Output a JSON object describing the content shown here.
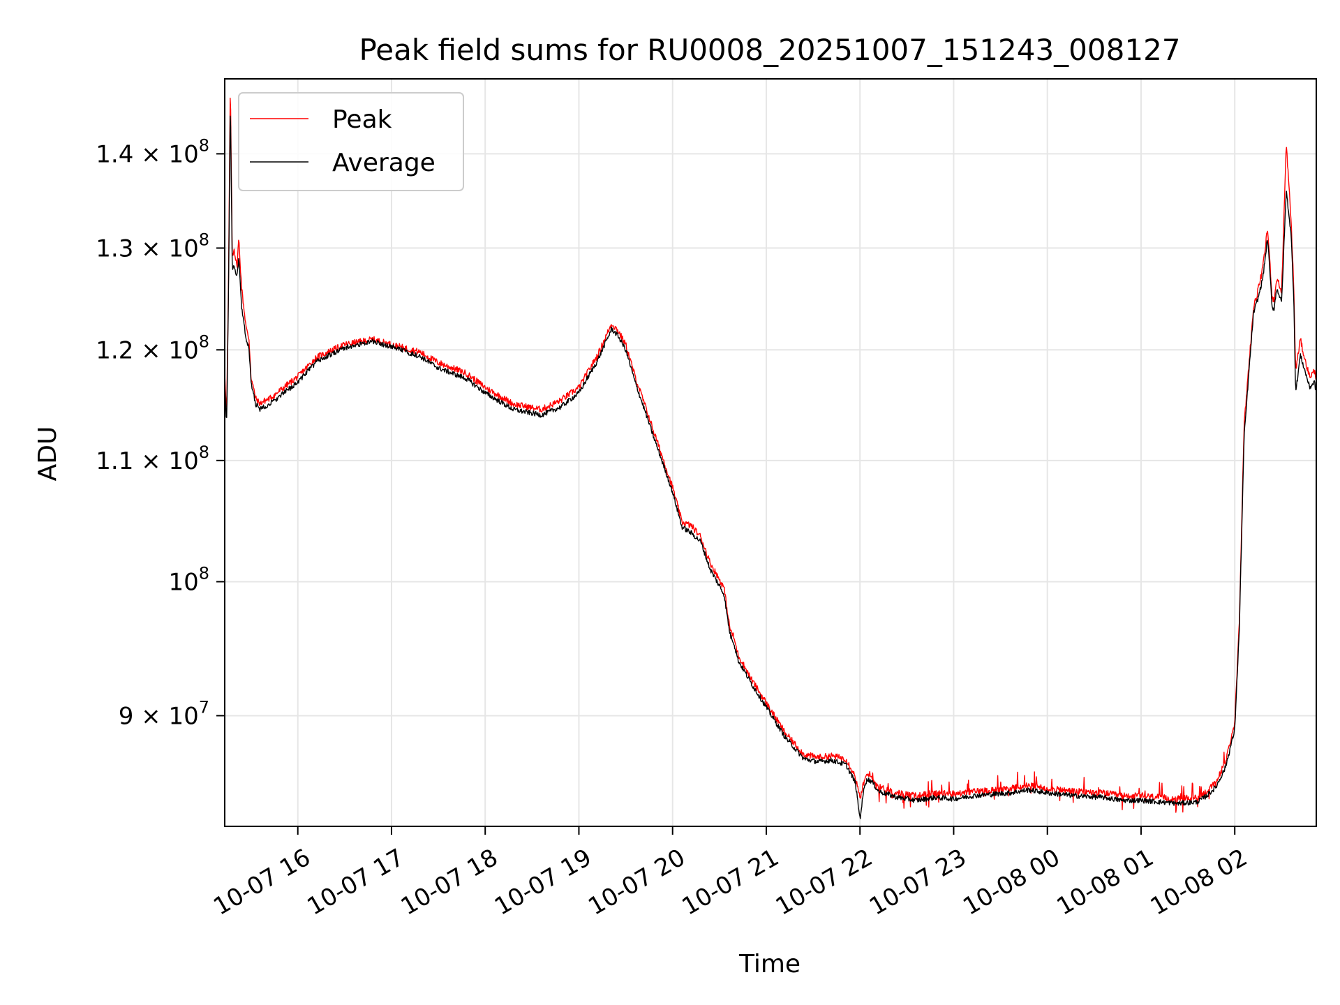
{
  "chart_data": {
    "type": "line",
    "title": "Peak field sums for RU0008_20251007_151243_008127",
    "xlabel": "Time",
    "ylabel": "ADU",
    "yscale": "log",
    "grid": true,
    "legend_position": "upper-left",
    "x_units": "hours since 2025-10-07 00:00",
    "xlim": [
      15.22,
      26.87
    ],
    "ylim": [
      82500000,
      148500000
    ],
    "x_ticks": [
      {
        "value": 16,
        "label": "10-07 16"
      },
      {
        "value": 17,
        "label": "10-07 17"
      },
      {
        "value": 18,
        "label": "10-07 18"
      },
      {
        "value": 19,
        "label": "10-07 19"
      },
      {
        "value": 20,
        "label": "10-07 20"
      },
      {
        "value": 21,
        "label": "10-07 21"
      },
      {
        "value": 22,
        "label": "10-07 22"
      },
      {
        "value": 23,
        "label": "10-07 23"
      },
      {
        "value": 24,
        "label": "10-08 00"
      },
      {
        "value": 25,
        "label": "10-08 01"
      },
      {
        "value": 26,
        "label": "10-08 02"
      }
    ],
    "y_ticks": [
      {
        "value": 90000000,
        "mantissa": "9",
        "times": " × ",
        "base": "10",
        "exp": "7"
      },
      {
        "value": 100000000,
        "mantissa": "",
        "times": "",
        "base": "10",
        "exp": "8"
      },
      {
        "value": 110000000,
        "mantissa": "1.1",
        "times": " × ",
        "base": "10",
        "exp": "8"
      },
      {
        "value": 120000000,
        "mantissa": "1.2",
        "times": " × ",
        "base": "10",
        "exp": "8"
      },
      {
        "value": 130000000,
        "mantissa": "1.3",
        "times": " × ",
        "base": "10",
        "exp": "8"
      },
      {
        "value": 140000000,
        "mantissa": "1.4",
        "times": " × ",
        "base": "10",
        "exp": "8"
      }
    ],
    "series": [
      {
        "name": "Peak",
        "color": "#ff0000",
        "noise": 0.0025,
        "x": [
          15.22,
          15.24,
          15.26,
          15.28,
          15.3,
          15.32,
          15.35,
          15.37,
          15.4,
          15.45,
          15.48,
          15.5,
          15.55,
          15.6,
          15.62,
          15.65,
          15.7,
          15.75,
          15.85,
          16.0,
          16.2,
          16.5,
          16.8,
          17.0,
          17.3,
          17.5,
          17.8,
          18.0,
          18.3,
          18.6,
          18.8,
          19.0,
          19.2,
          19.3,
          19.35,
          19.42,
          19.5,
          19.6,
          19.8,
          20.0,
          20.1,
          20.2,
          20.3,
          20.4,
          20.55,
          20.6,
          20.62,
          20.65,
          20.7,
          20.85,
          21.0,
          21.2,
          21.4,
          21.55,
          21.7,
          21.85,
          21.95,
          22.0,
          22.05,
          22.08,
          22.12,
          22.2,
          22.4,
          22.6,
          22.8,
          23.0,
          23.2,
          23.4,
          23.6,
          23.8,
          24.0,
          24.3,
          24.6,
          24.8,
          25.0,
          25.2,
          25.4,
          25.6,
          25.7,
          25.8,
          25.9,
          26.0,
          26.05,
          26.1,
          26.2,
          26.25,
          26.3,
          26.35,
          26.4,
          26.42,
          26.45,
          26.5,
          26.55,
          26.6,
          26.63,
          26.65,
          26.7,
          26.75,
          26.8,
          26.85,
          26.87
        ],
        "y": [
          118000000,
          114000000,
          126000000,
          148000000,
          129000000,
          130000000,
          128000000,
          131000000,
          126000000,
          122000000,
          121000000,
          117500000,
          115500000,
          115000000,
          115200000,
          115300000,
          115500000,
          115800000,
          116500000,
          117500000,
          119300000,
          120500000,
          121000000,
          120500000,
          119800000,
          118800000,
          117800000,
          116500000,
          115000000,
          114500000,
          115300000,
          116500000,
          119500000,
          121500000,
          122500000,
          121800000,
          120500000,
          117500000,
          112500000,
          107700000,
          104800000,
          104500000,
          103600000,
          101500000,
          99500000,
          96900000,
          96200000,
          95800000,
          94400000,
          92500000,
          90900000,
          88800000,
          87300000,
          87100000,
          87200000,
          87000000,
          85800000,
          84300000,
          85600000,
          85900000,
          85800000,
          85100000,
          84700000,
          84500000,
          84700000,
          84600000,
          84800000,
          84900000,
          85000000,
          85200000,
          85000000,
          84800000,
          84700000,
          84500000,
          84500000,
          84400000,
          84300000,
          84400000,
          84800000,
          85400000,
          86800000,
          89500000,
          97200000,
          113000000,
          124000000,
          125800000,
          128000000,
          132000000,
          125000000,
          124800000,
          127000000,
          125500000,
          141000000,
          133000000,
          126000000,
          118000000,
          121000000,
          119000000,
          117500000,
          118000000,
          117400000
        ]
      },
      {
        "name": "Average",
        "color": "#000000",
        "noise": 0.002,
        "x": [
          15.22,
          15.24,
          15.26,
          15.28,
          15.3,
          15.32,
          15.35,
          15.37,
          15.4,
          15.45,
          15.48,
          15.5,
          15.55,
          15.6,
          15.62,
          15.65,
          15.7,
          15.75,
          15.85,
          16.0,
          16.2,
          16.5,
          16.8,
          17.0,
          17.3,
          17.5,
          17.8,
          18.0,
          18.3,
          18.6,
          18.8,
          19.0,
          19.2,
          19.3,
          19.35,
          19.42,
          19.5,
          19.6,
          19.8,
          20.0,
          20.1,
          20.2,
          20.3,
          20.4,
          20.55,
          20.6,
          20.62,
          20.65,
          20.7,
          20.85,
          21.0,
          21.2,
          21.4,
          21.55,
          21.7,
          21.85,
          21.95,
          22.0,
          22.05,
          22.08,
          22.12,
          22.2,
          22.4,
          22.6,
          22.8,
          23.0,
          23.2,
          23.4,
          23.6,
          23.8,
          24.0,
          24.3,
          24.6,
          24.8,
          25.0,
          25.2,
          25.4,
          25.6,
          25.7,
          25.8,
          25.9,
          26.0,
          26.05,
          26.1,
          26.2,
          26.25,
          26.3,
          26.35,
          26.4,
          26.42,
          26.45,
          26.5,
          26.55,
          26.6,
          26.63,
          26.65,
          26.7,
          26.75,
          26.8,
          26.85,
          26.87
        ],
        "y": [
          117000000,
          113000000,
          125000000,
          146000000,
          128000000,
          128000000,
          127000000,
          129000000,
          124000000,
          121000000,
          120000000,
          117000000,
          115000000,
          114500000,
          114700000,
          114800000,
          115000000,
          115300000,
          116000000,
          117000000,
          118900000,
          120200000,
          120800000,
          120300000,
          119400000,
          118300000,
          117300000,
          116000000,
          114500000,
          114000000,
          114700000,
          116000000,
          119000000,
          121000000,
          122000000,
          121300000,
          120000000,
          117000000,
          112000000,
          107300000,
          104400000,
          103900000,
          103200000,
          101000000,
          99000000,
          96500000,
          95800000,
          95400000,
          94000000,
          92200000,
          90600000,
          88500000,
          87000000,
          86800000,
          86900000,
          86600000,
          85400000,
          83000000,
          85300000,
          85600000,
          85500000,
          84800000,
          84400000,
          84200000,
          84400000,
          84300000,
          84500000,
          84600000,
          84700000,
          84900000,
          84700000,
          84500000,
          84400000,
          84200000,
          84200000,
          84100000,
          84000000,
          84100000,
          84500000,
          85100000,
          86400000,
          89000000,
          96500000,
          112000000,
          123500000,
          125000000,
          127000000,
          131000000,
          124000000,
          124000000,
          126000000,
          124500000,
          136000000,
          131500000,
          125000000,
          116000000,
          119500000,
          118000000,
          116500000,
          117000000,
          116000000
        ]
      }
    ]
  }
}
